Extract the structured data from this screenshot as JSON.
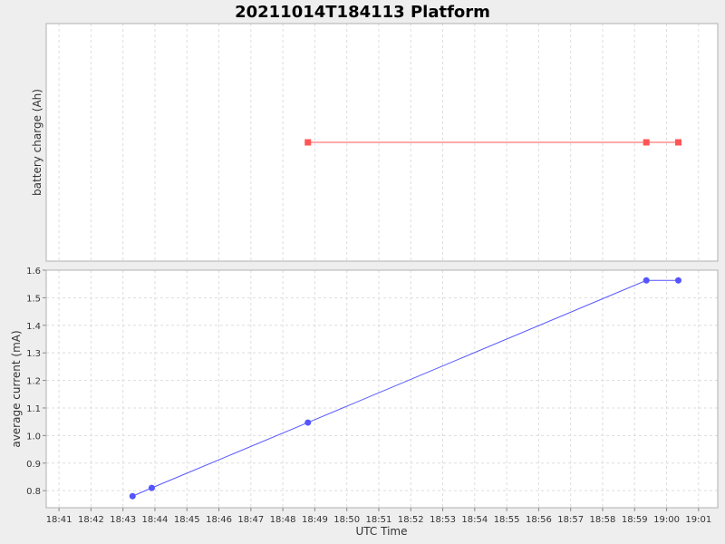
{
  "chart_data": {
    "type": "line",
    "title": "20211014T184113 Platform",
    "xlabel": "UTC Time",
    "x_ticks": [
      "18:41",
      "18:42",
      "18:43",
      "18:44",
      "18:45",
      "18:46",
      "18:47",
      "18:48",
      "18:49",
      "18:50",
      "18:51",
      "18:52",
      "18:53",
      "18:54",
      "18:55",
      "18:56",
      "18:57",
      "18:58",
      "18:59",
      "19:00",
      "19:01"
    ],
    "xlim": [
      "18:40:36",
      "19:01:36"
    ],
    "grid": true,
    "panels": [
      {
        "ylabel": "battery charge (Ah)",
        "y_ticks": [],
        "series": [
          {
            "color": "#ff5555",
            "marker": "square",
            "points": [
              {
                "t": "18:48:47",
                "y": 0
              },
              {
                "t": "18:59:22",
                "y": 0
              },
              {
                "t": "19:00:22",
                "y": 0
              }
            ]
          }
        ]
      },
      {
        "ylabel": "average current (mA)",
        "ylim": [
          0.75,
          1.6
        ],
        "y_ticks": [
          "0.8",
          "0.9",
          "1.0",
          "1.1",
          "1.2",
          "1.3",
          "1.4",
          "1.5",
          "1.6"
        ],
        "series": [
          {
            "color": "#5555ff",
            "marker": "circle",
            "points": [
              {
                "t": "18:43:18",
                "y": 0.78
              },
              {
                "t": "18:43:54",
                "y": 0.81
              },
              {
                "t": "18:48:47",
                "y": 1.047
              },
              {
                "t": "18:59:22",
                "y": 1.563
              },
              {
                "t": "19:00:22",
                "y": 1.563
              }
            ]
          }
        ]
      }
    ]
  }
}
